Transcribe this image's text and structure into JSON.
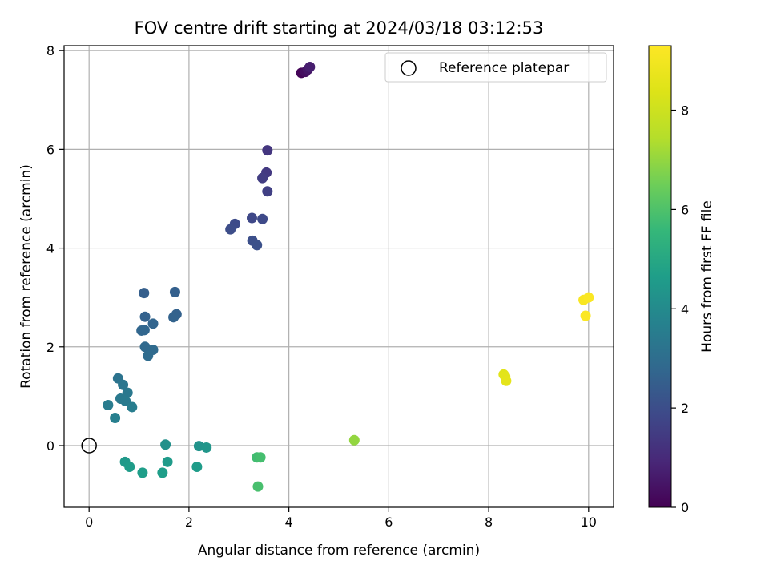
{
  "chart_data": {
    "type": "scatter",
    "title": "FOV centre drift starting at 2024/03/18 03:12:53",
    "xlabel": "Angular distance from reference (arcmin)",
    "ylabel": "Rotation from reference (arcmin)",
    "xlim": [
      -0.5,
      10.5
    ],
    "ylim": [
      -1.25,
      8.1
    ],
    "xticks": [
      0,
      2,
      4,
      6,
      8,
      10
    ],
    "yticks": [
      0,
      2,
      4,
      6,
      8
    ],
    "grid": true,
    "legend": {
      "position": "top-right",
      "entries": [
        "Reference platepar"
      ]
    },
    "reference_point": {
      "x": 0,
      "y": 0,
      "label": "Reference platepar"
    },
    "colorbar": {
      "label": "Hours from first FF file",
      "colormap": "viridis",
      "range": [
        0,
        9.3
      ],
      "ticks": [
        0,
        2,
        4,
        6,
        8
      ]
    },
    "points": [
      {
        "x": 4.25,
        "y": 7.55,
        "c": 0.1
      },
      {
        "x": 4.33,
        "y": 7.57,
        "c": 0.3
      },
      {
        "x": 4.38,
        "y": 7.62,
        "c": 0.5
      },
      {
        "x": 4.42,
        "y": 7.67,
        "c": 0.7
      },
      {
        "x": 3.57,
        "y": 5.98,
        "c": 1.3
      },
      {
        "x": 3.55,
        "y": 5.53,
        "c": 1.4
      },
      {
        "x": 3.47,
        "y": 5.42,
        "c": 1.5
      },
      {
        "x": 3.57,
        "y": 5.15,
        "c": 1.6
      },
      {
        "x": 3.26,
        "y": 4.61,
        "c": 1.8
      },
      {
        "x": 3.47,
        "y": 4.59,
        "c": 1.85
      },
      {
        "x": 2.92,
        "y": 4.49,
        "c": 1.9
      },
      {
        "x": 2.83,
        "y": 4.38,
        "c": 1.95
      },
      {
        "x": 3.27,
        "y": 4.15,
        "c": 2.0
      },
      {
        "x": 3.36,
        "y": 4.06,
        "c": 2.05
      },
      {
        "x": 1.1,
        "y": 3.09,
        "c": 2.5
      },
      {
        "x": 1.72,
        "y": 3.11,
        "c": 2.55
      },
      {
        "x": 1.75,
        "y": 2.66,
        "c": 2.6
      },
      {
        "x": 1.12,
        "y": 2.61,
        "c": 2.6
      },
      {
        "x": 1.69,
        "y": 2.6,
        "c": 2.65
      },
      {
        "x": 1.28,
        "y": 2.47,
        "c": 2.7
      },
      {
        "x": 1.05,
        "y": 2.33,
        "c": 2.75
      },
      {
        "x": 1.11,
        "y": 2.34,
        "c": 2.75
      },
      {
        "x": 1.12,
        "y": 2.0,
        "c": 2.85
      },
      {
        "x": 1.28,
        "y": 1.94,
        "c": 2.9
      },
      {
        "x": 1.18,
        "y": 1.82,
        "c": 2.95
      },
      {
        "x": 0.58,
        "y": 1.36,
        "c": 3.2
      },
      {
        "x": 0.68,
        "y": 1.23,
        "c": 3.3
      },
      {
        "x": 0.77,
        "y": 1.07,
        "c": 3.35
      },
      {
        "x": 0.63,
        "y": 0.95,
        "c": 3.4
      },
      {
        "x": 0.73,
        "y": 0.9,
        "c": 3.45
      },
      {
        "x": 0.38,
        "y": 0.82,
        "c": 3.5
      },
      {
        "x": 0.86,
        "y": 0.78,
        "c": 3.55
      },
      {
        "x": 0.52,
        "y": 0.56,
        "c": 3.6
      },
      {
        "x": 1.53,
        "y": 0.02,
        "c": 4.2
      },
      {
        "x": 2.2,
        "y": -0.01,
        "c": 4.3
      },
      {
        "x": 2.35,
        "y": -0.04,
        "c": 4.4
      },
      {
        "x": 0.72,
        "y": -0.33,
        "c": 4.5
      },
      {
        "x": 1.57,
        "y": -0.33,
        "c": 4.55
      },
      {
        "x": 0.81,
        "y": -0.43,
        "c": 4.6
      },
      {
        "x": 2.16,
        "y": -0.43,
        "c": 4.6
      },
      {
        "x": 1.07,
        "y": -0.55,
        "c": 4.65
      },
      {
        "x": 1.47,
        "y": -0.55,
        "c": 4.65
      },
      {
        "x": 3.36,
        "y": -0.24,
        "c": 5.8
      },
      {
        "x": 3.43,
        "y": -0.24,
        "c": 5.85
      },
      {
        "x": 3.38,
        "y": -0.83,
        "c": 5.9
      },
      {
        "x": 5.31,
        "y": 0.11,
        "c": 7.0
      },
      {
        "x": 8.3,
        "y": 1.44,
        "c": 8.5
      },
      {
        "x": 8.33,
        "y": 1.4,
        "c": 8.55
      },
      {
        "x": 8.35,
        "y": 1.31,
        "c": 8.6
      },
      {
        "x": 9.9,
        "y": 2.95,
        "c": 9.15
      },
      {
        "x": 10.0,
        "y": 3.0,
        "c": 9.2
      },
      {
        "x": 9.94,
        "y": 2.63,
        "c": 9.25
      }
    ]
  }
}
